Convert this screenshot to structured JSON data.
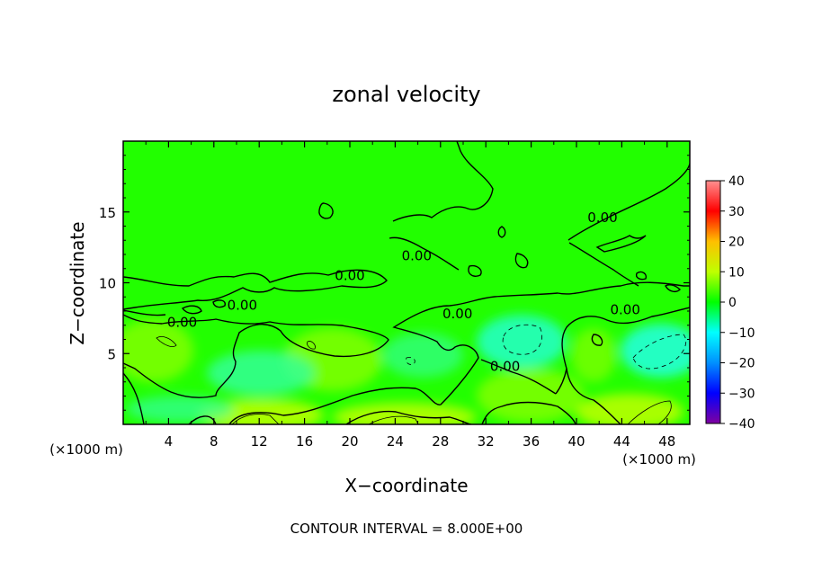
{
  "chart_data": {
    "type": "heatmap",
    "title": "zonal velocity",
    "xlabel": "X−coordinate",
    "ylabel": "Z−coordinate",
    "x_unit_left": "(×1000 m)",
    "x_unit_right": "(×1000 m)",
    "xlim": [
      0,
      50
    ],
    "ylim": [
      0,
      20
    ],
    "x_ticks": [
      "4",
      "8",
      "12",
      "16",
      "20",
      "24",
      "28",
      "32",
      "36",
      "40",
      "44",
      "48"
    ],
    "x_tick_values": [
      4,
      8,
      12,
      16,
      20,
      24,
      28,
      32,
      36,
      40,
      44,
      48
    ],
    "y_ticks": [
      "5",
      "10",
      "15"
    ],
    "y_tick_values": [
      5,
      10,
      15
    ],
    "colorbar": {
      "ticks": [
        "40",
        "30",
        "20",
        "10",
        "0",
        "−10",
        "−20",
        "−30",
        "−40"
      ],
      "tick_values": [
        40,
        30,
        20,
        10,
        0,
        -10,
        -20,
        -30,
        -40
      ],
      "range": [
        -40,
        40
      ],
      "colors": [
        "#7f00a0",
        "#0000ff",
        "#0090ff",
        "#00ffff",
        "#00ff00",
        "#bfff00",
        "#ffbf00",
        "#ff0000",
        "#ff9090"
      ]
    },
    "contour_interval_text": "CONTOUR INTERVAL = 8.000E+00",
    "contour_labels": [
      {
        "text": "0.00",
        "x": 5.2,
        "y": 7.2
      },
      {
        "text": "0.00",
        "x": 10.5,
        "y": 8.4
      },
      {
        "text": "0.00",
        "x": 20.0,
        "y": 10.5
      },
      {
        "text": "0.00",
        "x": 25.9,
        "y": 11.9
      },
      {
        "text": "0.00",
        "x": 29.5,
        "y": 7.8
      },
      {
        "text": "0.00",
        "x": 33.7,
        "y": 4.1
      },
      {
        "text": "0.00",
        "x": 42.3,
        "y": 14.6
      },
      {
        "text": "0.00",
        "x": 44.3,
        "y": 8.1
      }
    ],
    "grid": false
  }
}
